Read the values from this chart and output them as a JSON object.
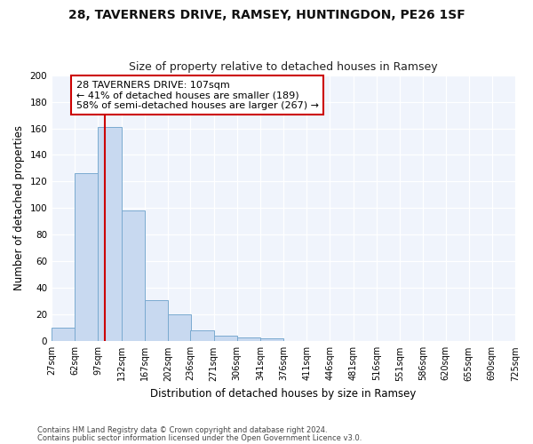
{
  "title1": "28, TAVERNERS DRIVE, RAMSEY, HUNTINGDON, PE26 1SF",
  "title2": "Size of property relative to detached houses in Ramsey",
  "xlabel": "Distribution of detached houses by size in Ramsey",
  "ylabel": "Number of detached properties",
  "bin_edges": [
    27,
    62,
    97,
    132,
    167,
    202,
    236,
    271,
    306,
    341,
    376,
    411,
    446,
    481,
    516,
    551,
    586,
    620,
    655,
    690,
    725
  ],
  "bar_heights": [
    10,
    126,
    161,
    98,
    31,
    20,
    8,
    4,
    3,
    2,
    0,
    0,
    0,
    0,
    0,
    0,
    0,
    0,
    0,
    0
  ],
  "bar_color": "#c8d9f0",
  "bar_edge_color": "#7aaad0",
  "property_line_x": 107,
  "property_line_color": "#cc0000",
  "annotation_text": "28 TAVERNERS DRIVE: 107sqm\n← 41% of detached houses are smaller (189)\n58% of semi-detached houses are larger (267) →",
  "annotation_box_color": "#ffffff",
  "annotation_box_edge": "#cc0000",
  "figure_bg_color": "#ffffff",
  "axes_bg_color": "#f0f4fc",
  "ylim": [
    0,
    200
  ],
  "yticks": [
    0,
    20,
    40,
    60,
    80,
    100,
    120,
    140,
    160,
    180,
    200
  ],
  "grid_color": "#ffffff",
  "footer1": "Contains HM Land Registry data © Crown copyright and database right 2024.",
  "footer2": "Contains public sector information licensed under the Open Government Licence v3.0."
}
